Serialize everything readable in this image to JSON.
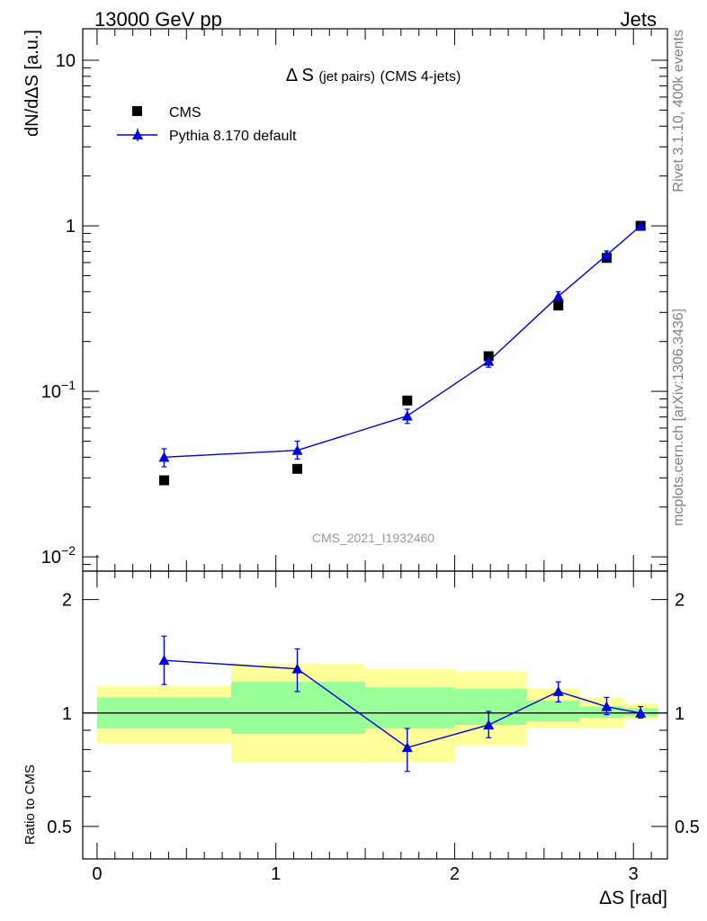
{
  "header": {
    "left": "13000 GeV pp",
    "right": "Jets"
  },
  "side_labels": {
    "rivet": "Rivet 3.1.10,  400k events",
    "mcplots": "mcplots.cern.ch [arXiv:1306.3436]"
  },
  "watermark": "CMS_2021_I1932460",
  "colors": {
    "mc": "#0000dd",
    "band_inner": "#99ff99",
    "band_outer": "#ffff99",
    "data": "#000000"
  },
  "chart_data": [
    {
      "type": "scatter",
      "title_main": "Δ S",
      "title_small": "(jet pairs)",
      "title_tail": "(CMS 4-jets)",
      "xlabel": "ΔS [rad]",
      "ylabel": "dN/dΔS [a.u.]",
      "yscale": "log",
      "xlim": [
        -0.08,
        3.19
      ],
      "ylim": [
        0.0082,
        15.5
      ],
      "yticks": [
        {
          "value": 10,
          "label": "10"
        },
        {
          "value": 1,
          "label": "1"
        },
        {
          "value": 0.1,
          "label": "10",
          "sup": "−1"
        },
        {
          "value": 0.01,
          "label": "10",
          "sup": "−2"
        }
      ],
      "legend": [
        {
          "name": "CMS",
          "marker": "square"
        },
        {
          "name": "Pythia 8.170 default",
          "marker": "triangle"
        }
      ],
      "series": [
        {
          "name": "CMS",
          "x": [
            0.375,
            1.12,
            1.735,
            2.19,
            2.58,
            2.85,
            3.04
          ],
          "y": [
            0.029,
            0.034,
            0.088,
            0.163,
            0.33,
            0.64,
            1.0
          ],
          "xerr_lo": [
            0.375,
            0.37,
            0.235,
            0.19,
            0.18,
            0.12,
            0.04
          ],
          "xerr_hi": [
            0.375,
            0.38,
            0.265,
            0.21,
            0.12,
            0.06,
            0.1
          ]
        },
        {
          "name": "Pythia 8.170 default",
          "x": [
            0.375,
            1.12,
            1.735,
            2.19,
            2.58,
            2.85,
            3.04
          ],
          "y": [
            0.04,
            0.044,
            0.071,
            0.152,
            0.375,
            0.665,
            1.0
          ],
          "y_lo": [
            0.035,
            0.039,
            0.064,
            0.14,
            0.35,
            0.625,
            0.985
          ],
          "y_hi": [
            0.045,
            0.05,
            0.078,
            0.164,
            0.4,
            0.705,
            1.015
          ]
        }
      ]
    },
    {
      "type": "scatter",
      "ylabel": "Ratio to CMS",
      "yscale": "log",
      "xlim": [
        -0.08,
        3.19
      ],
      "ylim": [
        0.41,
        2.38
      ],
      "xticks": [
        0,
        1,
        2,
        3
      ],
      "yticks": [
        {
          "value": 0.5,
          "label": "0.5"
        },
        {
          "value": 1,
          "label": "1"
        },
        {
          "value": 2,
          "label": "2"
        }
      ],
      "bands": [
        {
          "x0": 0.0,
          "x1": 0.75,
          "inner": [
            0.91,
            1.1
          ],
          "outer": [
            0.83,
            1.18
          ]
        },
        {
          "x0": 0.75,
          "x1": 1.5,
          "inner": [
            0.88,
            1.21
          ],
          "outer": [
            0.74,
            1.35
          ]
        },
        {
          "x0": 1.5,
          "x1": 2.0,
          "inner": [
            0.91,
            1.17
          ],
          "outer": [
            0.74,
            1.31
          ]
        },
        {
          "x0": 2.0,
          "x1": 2.4,
          "inner": [
            0.93,
            1.16
          ],
          "outer": [
            0.82,
            1.29
          ]
        },
        {
          "x0": 2.4,
          "x1": 2.7,
          "inner": [
            0.95,
            1.08
          ],
          "outer": [
            0.91,
            1.16
          ]
        },
        {
          "x0": 2.7,
          "x1": 2.95,
          "inner": [
            0.97,
            1.04
          ],
          "outer": [
            0.91,
            1.1
          ]
        },
        {
          "x0": 2.95,
          "x1": 3.14,
          "inner": [
            0.98,
            1.03
          ],
          "outer": [
            0.96,
            1.06
          ]
        }
      ],
      "series": [
        {
          "name": "Pythia 8.170 default",
          "x": [
            0.375,
            1.12,
            1.735,
            2.19,
            2.58,
            2.85,
            3.04
          ],
          "y": [
            1.38,
            1.31,
            0.81,
            0.93,
            1.14,
            1.04,
            1.0
          ],
          "y_lo": [
            1.19,
            1.14,
            0.7,
            0.86,
            1.07,
            0.99,
            0.97
          ],
          "y_hi": [
            1.6,
            1.48,
            0.91,
            1.01,
            1.21,
            1.1,
            1.04
          ]
        }
      ]
    }
  ]
}
